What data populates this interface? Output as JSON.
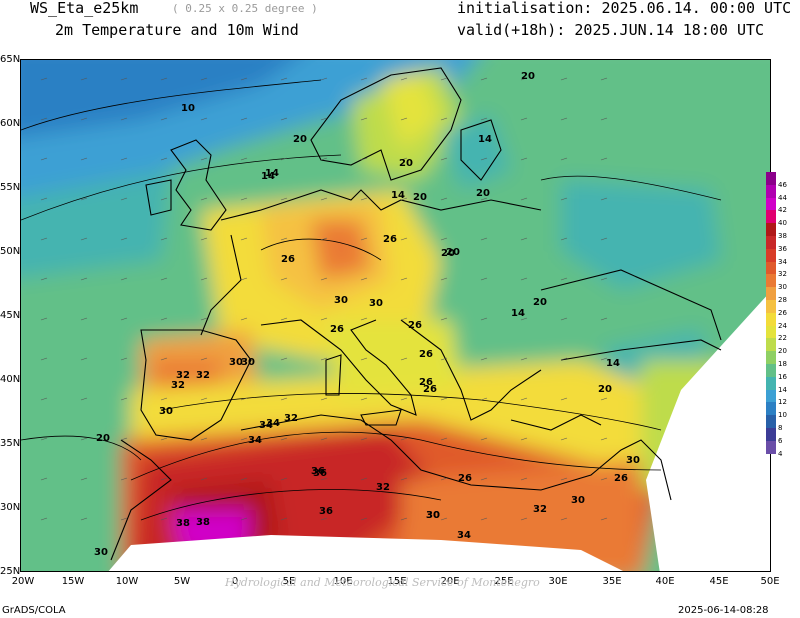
{
  "header": {
    "model": "WS_Eta_e25km",
    "resolution": "( 0.25 x 0.25 degree )",
    "field": "2m Temperature and 10m Wind",
    "init": "initialisation: 2025.06.14. 00:00 UTC",
    "valid": "valid(+18h): 2025.JUN.14 18:00 UTC"
  },
  "axes": {
    "lon_labels": [
      "20W",
      "15W",
      "10W",
      "5W",
      "0",
      "5E",
      "10E",
      "15E",
      "20E",
      "25E",
      "30E",
      "35E",
      "40E",
      "45E",
      "50E"
    ],
    "lat_labels": [
      "65N",
      "60N",
      "55N",
      "50N",
      "45N",
      "40N",
      "35N",
      "30N",
      "25N"
    ]
  },
  "colorbar": {
    "labels": [
      "46",
      "44",
      "42",
      "40",
      "38",
      "36",
      "34",
      "32",
      "30",
      "28",
      "26",
      "24",
      "22",
      "20",
      "18",
      "16",
      "14",
      "12",
      "10",
      "8",
      "6",
      "4"
    ],
    "colors": [
      "#8b008b",
      "#b000b0",
      "#d000c8",
      "#e00070",
      "#b01818",
      "#c82828",
      "#d83c28",
      "#e05a2c",
      "#ea7a34",
      "#f0a040",
      "#f5c142",
      "#f3dc3a",
      "#e4e33c",
      "#bedc4c",
      "#8fd064",
      "#62c088",
      "#44b4b0",
      "#3ca0d4",
      "#2c80c4",
      "#2860a8",
      "#3c3c96",
      "#6a4ea8"
    ]
  },
  "contour_labels": [
    "10",
    "14",
    "20",
    "26",
    "30",
    "32",
    "34",
    "36",
    "38",
    "20",
    "14",
    "26",
    "30",
    "32",
    "20",
    "26",
    "30",
    "34",
    "36",
    "32",
    "30",
    "26",
    "20",
    "14",
    "30",
    "26",
    "32",
    "34",
    "30",
    "36",
    "38",
    "30",
    "26",
    "30",
    "20",
    "14",
    "20",
    "26",
    "32",
    "30",
    "26",
    "14",
    "20",
    "14",
    "20",
    "20",
    "20",
    "26",
    "34",
    "32",
    "30"
  ],
  "footer": {
    "left": "GrADS/COLA",
    "right": "2025-06-14-08:28",
    "watermark": "Hydrological and Meteorological Service of Montenegro"
  }
}
